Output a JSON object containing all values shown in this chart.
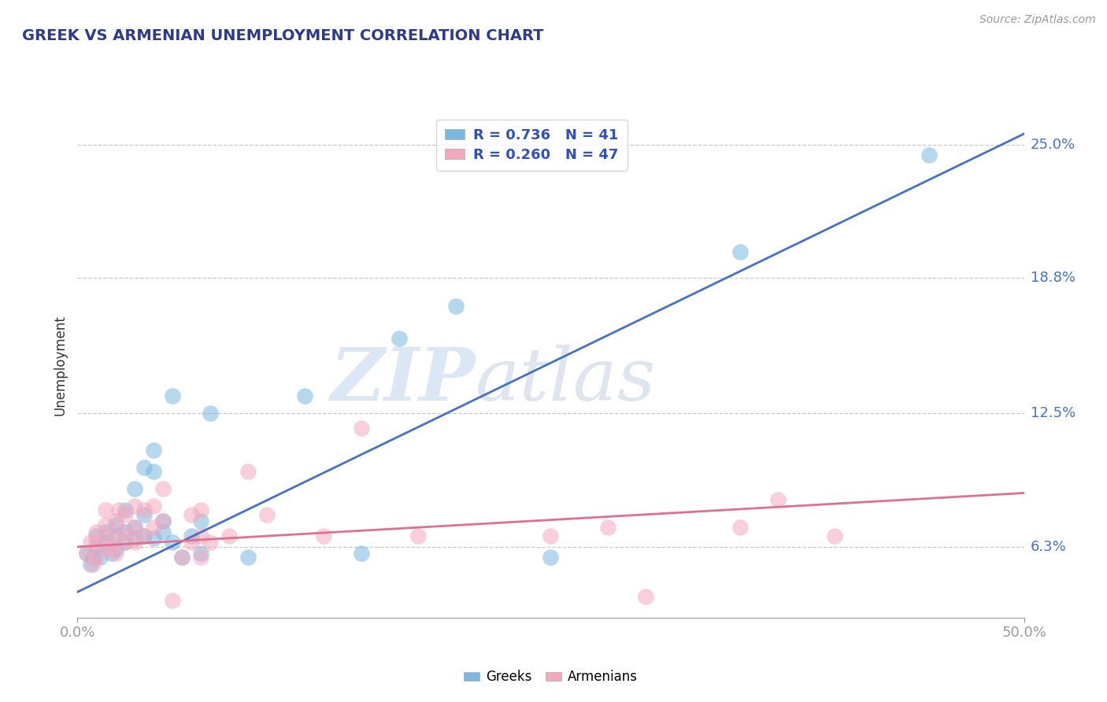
{
  "title": "GREEK VS ARMENIAN UNEMPLOYMENT CORRELATION CHART",
  "source_text": "Source: ZipAtlas.com",
  "ylabel": "Unemployment",
  "xlim": [
    0.0,
    0.5
  ],
  "ylim": [
    0.03,
    0.265
  ],
  "yticks": [
    0.063,
    0.125,
    0.188,
    0.25
  ],
  "ytick_labels": [
    "6.3%",
    "12.5%",
    "18.8%",
    "25.0%"
  ],
  "xtick_labels": [
    "0.0%",
    "50.0%"
  ],
  "xticks": [
    0.0,
    0.5
  ],
  "greek_color": "#7ab8e0",
  "armenian_color": "#f4a8be",
  "greek_line_color": "#4472c4",
  "armenian_line_color": "#e07090",
  "legend_blue_text": "R = 0.736   N = 41",
  "legend_pink_text": "R = 0.260   N = 47",
  "legend_text_color": "#3050c0",
  "watermark_zip": "ZIP",
  "watermark_atlas": "atlas",
  "greek_points": [
    [
      0.005,
      0.06
    ],
    [
      0.007,
      0.055
    ],
    [
      0.008,
      0.058
    ],
    [
      0.01,
      0.063
    ],
    [
      0.01,
      0.068
    ],
    [
      0.012,
      0.058
    ],
    [
      0.015,
      0.065
    ],
    [
      0.015,
      0.07
    ],
    [
      0.018,
      0.06
    ],
    [
      0.02,
      0.062
    ],
    [
      0.02,
      0.068
    ],
    [
      0.02,
      0.073
    ],
    [
      0.025,
      0.065
    ],
    [
      0.025,
      0.07
    ],
    [
      0.025,
      0.08
    ],
    [
      0.03,
      0.067
    ],
    [
      0.03,
      0.072
    ],
    [
      0.03,
      0.09
    ],
    [
      0.035,
      0.068
    ],
    [
      0.035,
      0.078
    ],
    [
      0.035,
      0.1
    ],
    [
      0.04,
      0.067
    ],
    [
      0.04,
      0.098
    ],
    [
      0.04,
      0.108
    ],
    [
      0.045,
      0.07
    ],
    [
      0.045,
      0.075
    ],
    [
      0.05,
      0.065
    ],
    [
      0.05,
      0.133
    ],
    [
      0.055,
      0.058
    ],
    [
      0.06,
      0.068
    ],
    [
      0.065,
      0.075
    ],
    [
      0.065,
      0.06
    ],
    [
      0.07,
      0.125
    ],
    [
      0.09,
      0.058
    ],
    [
      0.12,
      0.133
    ],
    [
      0.15,
      0.06
    ],
    [
      0.17,
      0.16
    ],
    [
      0.2,
      0.175
    ],
    [
      0.25,
      0.058
    ],
    [
      0.35,
      0.2
    ],
    [
      0.45,
      0.245
    ]
  ],
  "armenian_points": [
    [
      0.005,
      0.06
    ],
    [
      0.007,
      0.065
    ],
    [
      0.008,
      0.055
    ],
    [
      0.01,
      0.058
    ],
    [
      0.01,
      0.065
    ],
    [
      0.01,
      0.07
    ],
    [
      0.015,
      0.062
    ],
    [
      0.015,
      0.068
    ],
    [
      0.015,
      0.073
    ],
    [
      0.015,
      0.08
    ],
    [
      0.018,
      0.063
    ],
    [
      0.02,
      0.06
    ],
    [
      0.02,
      0.068
    ],
    [
      0.02,
      0.075
    ],
    [
      0.022,
      0.08
    ],
    [
      0.025,
      0.065
    ],
    [
      0.025,
      0.07
    ],
    [
      0.025,
      0.078
    ],
    [
      0.03,
      0.065
    ],
    [
      0.03,
      0.072
    ],
    [
      0.03,
      0.082
    ],
    [
      0.035,
      0.068
    ],
    [
      0.035,
      0.08
    ],
    [
      0.04,
      0.072
    ],
    [
      0.04,
      0.082
    ],
    [
      0.045,
      0.075
    ],
    [
      0.045,
      0.09
    ],
    [
      0.05,
      0.038
    ],
    [
      0.055,
      0.058
    ],
    [
      0.06,
      0.065
    ],
    [
      0.06,
      0.078
    ],
    [
      0.065,
      0.058
    ],
    [
      0.065,
      0.068
    ],
    [
      0.065,
      0.08
    ],
    [
      0.07,
      0.065
    ],
    [
      0.08,
      0.068
    ],
    [
      0.09,
      0.098
    ],
    [
      0.1,
      0.078
    ],
    [
      0.13,
      0.068
    ],
    [
      0.15,
      0.118
    ],
    [
      0.18,
      0.068
    ],
    [
      0.25,
      0.068
    ],
    [
      0.28,
      0.072
    ],
    [
      0.3,
      0.04
    ],
    [
      0.35,
      0.072
    ],
    [
      0.37,
      0.085
    ],
    [
      0.4,
      0.068
    ]
  ],
  "greek_line": {
    "x0": 0.0,
    "y0": 0.042,
    "x1": 0.5,
    "y1": 0.255
  },
  "armenian_line": {
    "x0": 0.0,
    "y0": 0.063,
    "x1": 0.5,
    "y1": 0.088
  },
  "background_color": "#ffffff",
  "grid_color": "#c8c8c8",
  "title_color": "#2d3b8c",
  "tick_color": "#4472c4"
}
